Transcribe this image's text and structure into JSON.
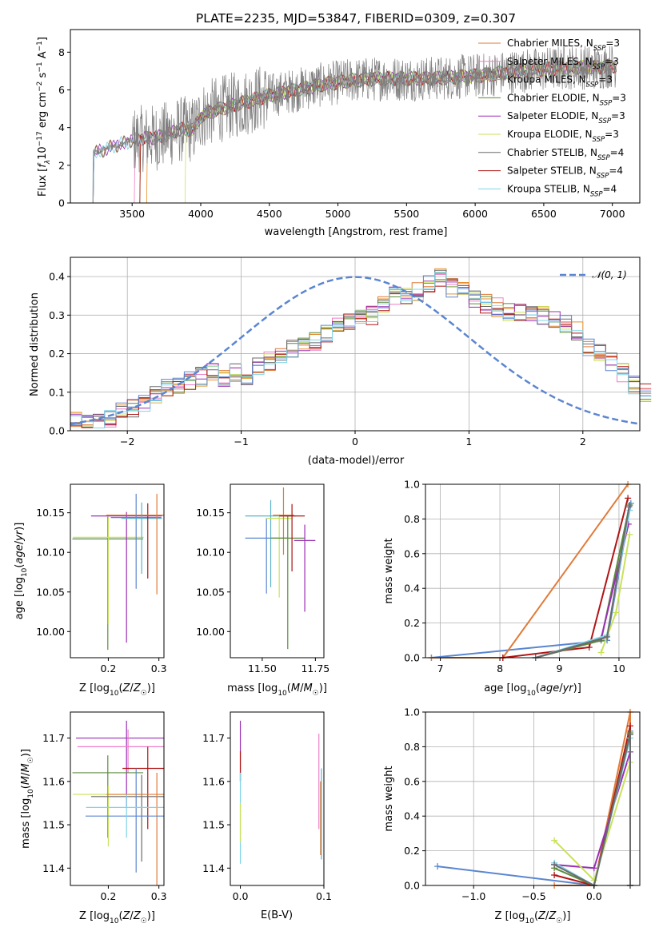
{
  "page": {
    "title": "PLATE=2235, MJD=53847, FIBERID=0309, z=0.307"
  },
  "colors": {
    "chabrier_miles": "#e07b39",
    "salpeter_miles": "#ee7ec8",
    "kroupa_miles": "#e8902a",
    "chabrier_elodie": "#5a8c3a",
    "salpeter_elodie": "#9b2fb5",
    "kroupa_elodie": "#c9e25a",
    "chabrier_stelib": "#6b6b6b",
    "salpeter_stelib": "#b01515",
    "kroupa_stelib": "#7fd4e8",
    "normal_curve": "#5b86d0",
    "spectrum_data": "#808080"
  },
  "chart_data": [
    {
      "id": "spectrum",
      "type": "line",
      "xlabel": "wavelength [Angstrom, rest frame]",
      "ylabel": "Flux [f_λ 10^-17 erg cm^-2 s^-1 A^-1]",
      "ylabel_parts": {
        "main": "Flux [",
        "f": "f",
        "lam": "λ",
        "a": "10",
        "b": "−17",
        "c": " erg cm",
        "d": "−2",
        "e": " s",
        "g": "−1",
        "h": " A",
        "i": "−1",
        "j": "]"
      },
      "xlim": [
        3050,
        7200
      ],
      "ylim": [
        0,
        9.2
      ],
      "xticks": [
        "3500",
        "4000",
        "4500",
        "5000",
        "5500",
        "6000",
        "6500",
        "7000"
      ],
      "xtick_values": [
        3500,
        4000,
        4500,
        5000,
        5500,
        6000,
        6500,
        7000
      ],
      "yticks": [
        "0",
        "2",
        "4",
        "6",
        "8"
      ],
      "ytick_values": [
        0,
        2,
        4,
        6,
        8
      ],
      "x_range_data": [
        3210,
        7030
      ],
      "legend_placement": "right",
      "legend": [
        {
          "pre": "Chabrier MILES, N",
          "sub": "SSP",
          "post": "=3",
          "color": "#e07b39"
        },
        {
          "pre": "Salpeter MILES, N",
          "sub": "SSP",
          "post": "=3",
          "color": "#ee7ec8"
        },
        {
          "pre": "Kroupa MILES, N",
          "sub": "SSP",
          "post": "=3",
          "color": "#e8902a"
        },
        {
          "pre": "Chabrier ELODIE, N",
          "sub": "SSP",
          "post": "=3",
          "color": "#5a8c3a"
        },
        {
          "pre": "Salpeter ELODIE, N",
          "sub": "SSP",
          "post": "=3",
          "color": "#9b2fb5"
        },
        {
          "pre": "Kroupa ELODIE, N",
          "sub": "SSP",
          "post": "=3",
          "color": "#c9e25a"
        },
        {
          "pre": "Chabrier STELIB, N",
          "sub": "SSP",
          "post": "=4",
          "color": "#6b6b6b"
        },
        {
          "pre": "Salpeter STELIB, N",
          "sub": "SSP",
          "post": "=4",
          "color": "#b01515"
        },
        {
          "pre": "Kroupa STELIB, N",
          "sub": "SSP",
          "post": "=4",
          "color": "#7fd4e8"
        }
      ],
      "continuum": [
        [
          3210,
          2.6
        ],
        [
          3400,
          3.1
        ],
        [
          3550,
          3.4
        ],
        [
          3700,
          3.5
        ],
        [
          3850,
          3.9
        ],
        [
          3950,
          3.9
        ],
        [
          4000,
          4.6
        ],
        [
          4100,
          4.9
        ],
        [
          4300,
          5.3
        ],
        [
          4500,
          5.7
        ],
        [
          4700,
          6.0
        ],
        [
          4900,
          6.3
        ],
        [
          5100,
          6.5
        ],
        [
          5300,
          6.6
        ],
        [
          5500,
          6.6
        ],
        [
          5700,
          6.6
        ],
        [
          5900,
          6.7
        ],
        [
          6100,
          6.8
        ],
        [
          6300,
          7.0
        ],
        [
          6500,
          7.1
        ],
        [
          6700,
          7.2
        ],
        [
          6900,
          7.2
        ],
        [
          7030,
          7.3
        ]
      ]
    },
    {
      "id": "residuals",
      "type": "histogram",
      "xlabel": "(data-model)/error",
      "ylabel": "Normed distribution",
      "xlim": [
        -2.5,
        2.5
      ],
      "ylim": [
        0,
        0.45
      ],
      "xticks": [
        "−2",
        "−1",
        "0",
        "1",
        "2"
      ],
      "xtick_values": [
        -2,
        -1,
        0,
        1,
        2
      ],
      "yticks": [
        "0.0",
        "0.1",
        "0.2",
        "0.3",
        "0.4"
      ],
      "ytick_values": [
        0,
        0.1,
        0.2,
        0.3,
        0.4
      ],
      "grid": true,
      "bin_width": 0.1,
      "bins_start": -2.5,
      "base_values": [
        0.03,
        0.03,
        0.03,
        0.03,
        0.05,
        0.06,
        0.07,
        0.09,
        0.11,
        0.12,
        0.13,
        0.14,
        0.15,
        0.14,
        0.15,
        0.13,
        0.17,
        0.18,
        0.2,
        0.21,
        0.22,
        0.23,
        0.25,
        0.27,
        0.28,
        0.3,
        0.3,
        0.33,
        0.35,
        0.35,
        0.36,
        0.38,
        0.4,
        0.37,
        0.36,
        0.34,
        0.33,
        0.32,
        0.31,
        0.31,
        0.3,
        0.3,
        0.29,
        0.28,
        0.26,
        0.22,
        0.2,
        0.18,
        0.15,
        0.12,
        0.1
      ],
      "legend": [
        {
          "label": "N(0,1)",
          "math": "𝒩(0, 1)",
          "style": "dashed"
        }
      ],
      "legend_placement": "top-right"
    },
    {
      "id": "age_vs_Z",
      "type": "errorbar",
      "xlabel": "Z [log10(Z/Z☉)]",
      "ylabel": "age  [log10(age/yr)]",
      "xlim": [
        0.125,
        0.31
      ],
      "ylim": [
        9.967,
        10.186
      ],
      "xticks": [
        "0.2",
        "0.3"
      ],
      "xtick_values": [
        0.2,
        0.3
      ],
      "yticks": [
        "10.00",
        "10.05",
        "10.10",
        "10.15"
      ],
      "ytick_values": [
        10.0,
        10.05,
        10.1,
        10.15
      ],
      "points": [
        {
          "x": 0.199,
          "y": 10.117,
          "xerr": 0.07,
          "yerr": [
            0.14,
            0.028
          ],
          "color": "#5a8c3a"
        },
        {
          "x": 0.2,
          "y": 10.119,
          "xerr": 0.07,
          "yerr": [
            0.11,
            0.025
          ],
          "color": "#c9e25a"
        },
        {
          "x": 0.236,
          "y": 10.146,
          "xerr": 0.07,
          "yerr": [
            0.16,
            0.005
          ],
          "color": "#9b2fb5"
        },
        {
          "x": 0.255,
          "y": 10.144,
          "xerr": 0.05,
          "yerr": [
            0.09,
            0.03
          ],
          "color": "#5b86d0"
        },
        {
          "x": 0.266,
          "y": 10.143,
          "xerr": 0.04,
          "yerr": [
            0.07,
            0.02
          ],
          "color": "#5ab1c8"
        },
        {
          "x": 0.278,
          "y": 10.147,
          "xerr": 0.03,
          "yerr": [
            0.08,
            0.015
          ],
          "color": "#b01515"
        },
        {
          "x": 0.296,
          "y": 10.147,
          "xerr": 0.1,
          "yerr": [
            0.1,
            0.027
          ],
          "color": "#e07b39"
        }
      ]
    },
    {
      "id": "age_vs_mass",
      "type": "errorbar",
      "xlabel": "mass [log10(M/M☉)]",
      "ylabel": "",
      "xlim": [
        11.35,
        11.79
      ],
      "ylim": [
        9.967,
        10.186
      ],
      "xticks": [
        "11.50",
        "11.75"
      ],
      "xtick_values": [
        11.5,
        11.75
      ],
      "yticks": [
        "10.00",
        "10.05",
        "10.10",
        "10.15"
      ],
      "ytick_values": [
        10.0,
        10.05,
        10.1,
        10.15
      ],
      "points": [
        {
          "x": 11.52,
          "y": 10.118,
          "xerr": 0.1,
          "yerr": [
            0.07,
            0.025
          ],
          "color": "#5b86d0"
        },
        {
          "x": 11.54,
          "y": 10.146,
          "xerr": 0.12,
          "yerr": [
            0.09,
            0.02
          ],
          "color": "#5ab1c8"
        },
        {
          "x": 11.58,
          "y": 10.143,
          "xerr": 0.06,
          "yerr": [
            0.1,
            0.005
          ],
          "color": "#c9e25a"
        },
        {
          "x": 11.6,
          "y": 10.147,
          "xerr": 0.05,
          "yerr": [
            0.05,
            0.035
          ],
          "color": "#e07b39"
        },
        {
          "x": 11.62,
          "y": 10.118,
          "xerr": 0.08,
          "yerr": [
            0.14,
            0.028
          ],
          "color": "#5a8c3a"
        },
        {
          "x": 11.64,
          "y": 10.146,
          "xerr": 0.06,
          "yerr": [
            0.07,
            0.015
          ],
          "color": "#b01515"
        },
        {
          "x": 11.7,
          "y": 10.115,
          "xerr": 0.05,
          "yerr": [
            0.09,
            0.02
          ],
          "color": "#9b2fb5"
        }
      ]
    },
    {
      "id": "weight_vs_age",
      "type": "line",
      "xlabel": "age  [log10(age/yr)]",
      "ylabel": "mass weight",
      "xlim": [
        6.75,
        10.35
      ],
      "ylim": [
        0,
        1.0
      ],
      "xticks": [
        "7",
        "8",
        "9",
        "10"
      ],
      "xtick_values": [
        7,
        8,
        9,
        10
      ],
      "yticks": [
        "0.0",
        "0.2",
        "0.4",
        "0.6",
        "0.8",
        "1.0"
      ],
      "ytick_values": [
        0,
        0.2,
        0.4,
        0.6,
        0.8,
        1.0
      ],
      "grid": true,
      "series": [
        {
          "color": "#5b86d0",
          "points": [
            [
              6.85,
              0.0
            ],
            [
              9.8,
              0.1
            ],
            [
              10.2,
              0.89
            ]
          ]
        },
        {
          "color": "#e07b39",
          "points": [
            [
              6.85,
              0.0
            ],
            [
              8.05,
              0.0
            ],
            [
              10.15,
              1.0
            ]
          ]
        },
        {
          "color": "#b01515",
          "points": [
            [
              8.05,
              0.0
            ],
            [
              9.5,
              0.06
            ],
            [
              10.15,
              0.92
            ]
          ]
        },
        {
          "color": "#5a8c3a",
          "points": [
            [
              8.6,
              0.0
            ],
            [
              9.7,
              0.1
            ],
            [
              10.18,
              0.88
            ]
          ]
        },
        {
          "color": "#9b2fb5",
          "points": [
            [
              8.6,
              0.0
            ],
            [
              9.7,
              0.11
            ],
            [
              10.16,
              0.77
            ]
          ]
        },
        {
          "color": "#c9e25a",
          "points": [
            [
              9.7,
              0.03
            ],
            [
              9.95,
              0.26
            ],
            [
              10.18,
              0.71
            ]
          ]
        },
        {
          "color": "#7fd4e8",
          "points": [
            [
              8.6,
              0.0
            ],
            [
              9.8,
              0.13
            ],
            [
              10.18,
              0.85
            ]
          ]
        },
        {
          "color": "#6b6b6b",
          "points": [
            [
              8.6,
              0.0
            ],
            [
              9.8,
              0.12
            ],
            [
              10.17,
              0.87
            ]
          ]
        }
      ]
    },
    {
      "id": "mass_vs_Z",
      "type": "errorbar",
      "xlabel": "Z [log10(Z/Z☉)]",
      "ylabel": "mass [log10(M/M☉)]",
      "xlim": [
        0.125,
        0.31
      ],
      "ylim": [
        11.36,
        11.76
      ],
      "xticks": [
        "0.2",
        "0.3"
      ],
      "xtick_values": [
        0.2,
        0.3
      ],
      "yticks": [
        "11.4",
        "11.5",
        "11.6",
        "11.7"
      ],
      "ytick_values": [
        11.4,
        11.5,
        11.6,
        11.7
      ],
      "points": [
        {
          "x": 0.236,
          "y": 11.7,
          "xerr": 0.1,
          "yerr": [
            0.16,
            0.04
          ],
          "color": "#9b2fb5"
        },
        {
          "x": 0.239,
          "y": 11.68,
          "xerr": 0.1,
          "yerr": [
            0.06,
            0.04
          ],
          "color": "#ee7ec8"
        },
        {
          "x": 0.199,
          "y": 11.62,
          "xerr": 0.07,
          "yerr": [
            0.15,
            0.04
          ],
          "color": "#5a8c3a"
        },
        {
          "x": 0.278,
          "y": 11.63,
          "xerr": 0.05,
          "yerr": [
            0.14,
            0.05
          ],
          "color": "#b01515"
        },
        {
          "x": 0.2,
          "y": 11.57,
          "xerr": 0.07,
          "yerr": [
            0.12,
            0.02
          ],
          "color": "#c9e25a"
        },
        {
          "x": 0.266,
          "y": 11.565,
          "xerr": 0.1,
          "yerr": [
            0.15,
            0.05
          ],
          "color": "#6b6b6b"
        },
        {
          "x": 0.296,
          "y": 11.57,
          "xerr": 0.1,
          "yerr": [
            0.21,
            0.05
          ],
          "color": "#e07b39"
        },
        {
          "x": 0.255,
          "y": 11.52,
          "xerr": 0.1,
          "yerr": [
            0.13,
            0.11
          ],
          "color": "#5b86d0"
        },
        {
          "x": 0.236,
          "y": 11.54,
          "xerr": 0.08,
          "yerr": [
            0.07,
            0.03
          ],
          "color": "#7fd4e8"
        }
      ]
    },
    {
      "id": "mass_vs_EBV",
      "type": "errorbar",
      "xlabel": "E(B-V)",
      "ylabel": "",
      "xlim": [
        -0.012,
        0.1
      ],
      "ylim": [
        11.36,
        11.76
      ],
      "xticks": [
        "0.0",
        "0.1"
      ],
      "xtick_values": [
        0.0,
        0.1
      ],
      "yticks": [
        "11.4",
        "11.5",
        "11.6",
        "11.7"
      ],
      "ytick_values": [
        11.4,
        11.5,
        11.6,
        11.7
      ],
      "points": [
        {
          "x": 0.0,
          "y": 11.66,
          "xerr": 0.0,
          "yerr": [
            0.06,
            0.08
          ],
          "color": "#9b2fb5"
        },
        {
          "x": 0.0,
          "y": 11.62,
          "xerr": 0.0,
          "yerr": [
            0.02,
            0.05
          ],
          "color": "#b01515"
        },
        {
          "x": 0.0,
          "y": 11.56,
          "xerr": 0.0,
          "yerr": [
            0.15,
            0.06
          ],
          "color": "#7fd4e8"
        },
        {
          "x": 0.0,
          "y": 11.5,
          "xerr": 0.0,
          "yerr": [
            0.04,
            0.05
          ],
          "color": "#c9e25a"
        },
        {
          "x": 0.094,
          "y": 11.6,
          "xerr": 0.0,
          "yerr": [
            0.11,
            0.11
          ],
          "color": "#ee7ec8"
        },
        {
          "x": 0.096,
          "y": 11.55,
          "xerr": 0.0,
          "yerr": [
            0.12,
            0.05
          ],
          "color": "#e07b39"
        },
        {
          "x": 0.097,
          "y": 11.52,
          "xerr": 0.0,
          "yerr": [
            0.1,
            0.11
          ],
          "color": "#5ab1c8"
        }
      ]
    },
    {
      "id": "weight_vs_Z",
      "type": "line",
      "xlabel": "Z [log10(Z/Z☉)]",
      "ylabel": "mass weight",
      "xlim": [
        -1.4,
        0.38
      ],
      "ylim": [
        0,
        1.0
      ],
      "xticks": [
        "−1.0",
        "−0.5",
        "0.0"
      ],
      "xtick_values": [
        -1.0,
        -0.5,
        0.0
      ],
      "yticks": [
        "0.0",
        "0.2",
        "0.4",
        "0.6",
        "0.8",
        "1.0"
      ],
      "ytick_values": [
        0,
        0.2,
        0.4,
        0.6,
        0.8,
        1.0
      ],
      "grid": true,
      "series": [
        {
          "color": "#5b86d0",
          "points": [
            [
              -1.3,
              0.11
            ],
            [
              0.0,
              0.0
            ],
            [
              0.3,
              0.89
            ],
            [
              0.3,
              0.0
            ]
          ]
        },
        {
          "color": "#e07b39",
          "points": [
            [
              -0.33,
              0.0
            ],
            [
              0.0,
              0.0
            ],
            [
              0.3,
              1.0
            ],
            [
              0.3,
              0.0
            ]
          ]
        },
        {
          "color": "#b01515",
          "points": [
            [
              -0.33,
              0.06
            ],
            [
              0.0,
              0.0
            ],
            [
              0.3,
              0.92
            ],
            [
              0.3,
              0.0
            ]
          ]
        },
        {
          "color": "#5a8c3a",
          "points": [
            [
              -0.33,
              0.1
            ],
            [
              0.0,
              0.0
            ],
            [
              0.3,
              0.88
            ],
            [
              0.3,
              0.0
            ]
          ]
        },
        {
          "color": "#9b2fb5",
          "points": [
            [
              -0.33,
              0.12
            ],
            [
              0.0,
              0.1
            ],
            [
              0.3,
              0.77
            ],
            [
              0.3,
              0.0
            ]
          ]
        },
        {
          "color": "#c9e25a",
          "points": [
            [
              -0.33,
              0.26
            ],
            [
              0.0,
              0.03
            ],
            [
              0.3,
              0.71
            ],
            [
              0.3,
              0.0
            ]
          ]
        },
        {
          "color": "#7fd4e8",
          "points": [
            [
              -0.33,
              0.13
            ],
            [
              0.0,
              0.0
            ],
            [
              0.3,
              0.85
            ],
            [
              0.3,
              0.0
            ]
          ]
        },
        {
          "color": "#6b6b6b",
          "points": [
            [
              -0.33,
              0.12
            ],
            [
              0.0,
              0.0
            ],
            [
              0.3,
              0.87
            ],
            [
              0.3,
              0.0
            ]
          ]
        }
      ]
    }
  ]
}
